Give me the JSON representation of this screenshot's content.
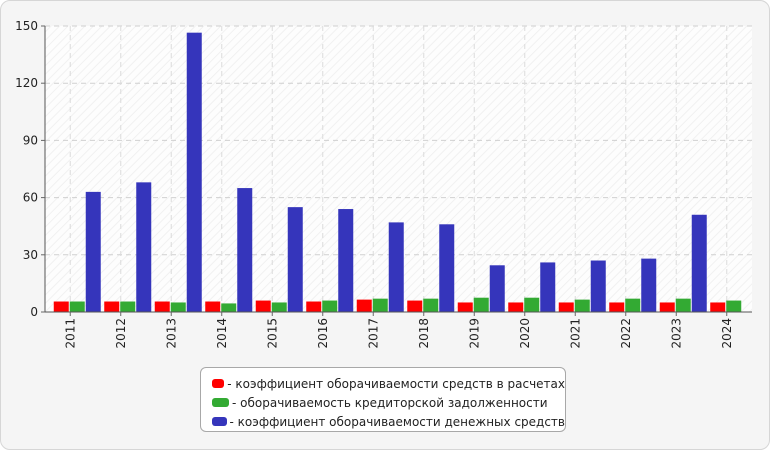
{
  "chart_data": {
    "type": "bar",
    "categories": [
      "2011",
      "2012",
      "2013",
      "2014",
      "2015",
      "2016",
      "2017",
      "2018",
      "2019",
      "2020",
      "2021",
      "2022",
      "2023",
      "2024"
    ],
    "ylim": [
      0,
      150
    ],
    "yticks": [
      0,
      30,
      60,
      90,
      120,
      150
    ],
    "grid": true,
    "legend_position": "bottom-center",
    "series": [
      {
        "name": "- коэффициент оборачиваемости средств в расчетах",
        "color": "#ff0000",
        "values": [
          5.5,
          5.5,
          5.5,
          5.5,
          6.0,
          5.5,
          6.5,
          6.0,
          5.0,
          5.0,
          5.0,
          5.0,
          5.0,
          5.0
        ]
      },
      {
        "name": "- оборачиваемость кредиторской задолженности",
        "color": "#33aa33",
        "values": [
          5.5,
          5.5,
          5.0,
          4.5,
          5.0,
          6.0,
          7.0,
          7.0,
          7.5,
          7.5,
          6.5,
          7.0,
          7.0,
          6.0
        ]
      },
      {
        "name": "- коэффициент оборачиваемости денежных средств",
        "color": "#3535bb",
        "values": [
          63,
          68,
          146.5,
          65,
          55,
          54,
          47,
          46,
          24.5,
          26,
          27,
          28,
          51,
          0
        ]
      }
    ]
  }
}
